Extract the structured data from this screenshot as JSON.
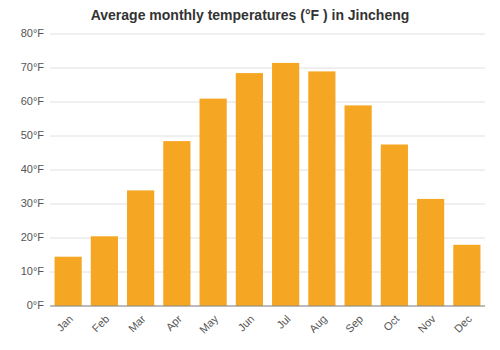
{
  "chart_data": {
    "type": "bar",
    "title": "Average monthly temperatures (°F ) in Jincheng",
    "categories": [
      "Jan",
      "Feb",
      "Mar",
      "Apr",
      "May",
      "Jun",
      "Jul",
      "Aug",
      "Sep",
      "Oct",
      "Nov",
      "Dec"
    ],
    "values": [
      14.5,
      20.5,
      34.0,
      48.5,
      61.0,
      68.5,
      71.5,
      69.0,
      59.0,
      47.5,
      31.5,
      18.0
    ],
    "color": "#F5A623",
    "ylim": [
      0,
      80
    ],
    "yticks": [
      {
        "value": 0,
        "label": "0°F"
      },
      {
        "value": 10,
        "label": "10°F"
      },
      {
        "value": 20,
        "label": "20°F"
      },
      {
        "value": 30,
        "label": "30°F"
      },
      {
        "value": 40,
        "label": "40°F"
      },
      {
        "value": 50,
        "label": "50°F"
      },
      {
        "value": 60,
        "label": "60°F"
      },
      {
        "value": 70,
        "label": "70°F"
      },
      {
        "value": 80,
        "label": "80°F"
      }
    ],
    "grid": true
  }
}
